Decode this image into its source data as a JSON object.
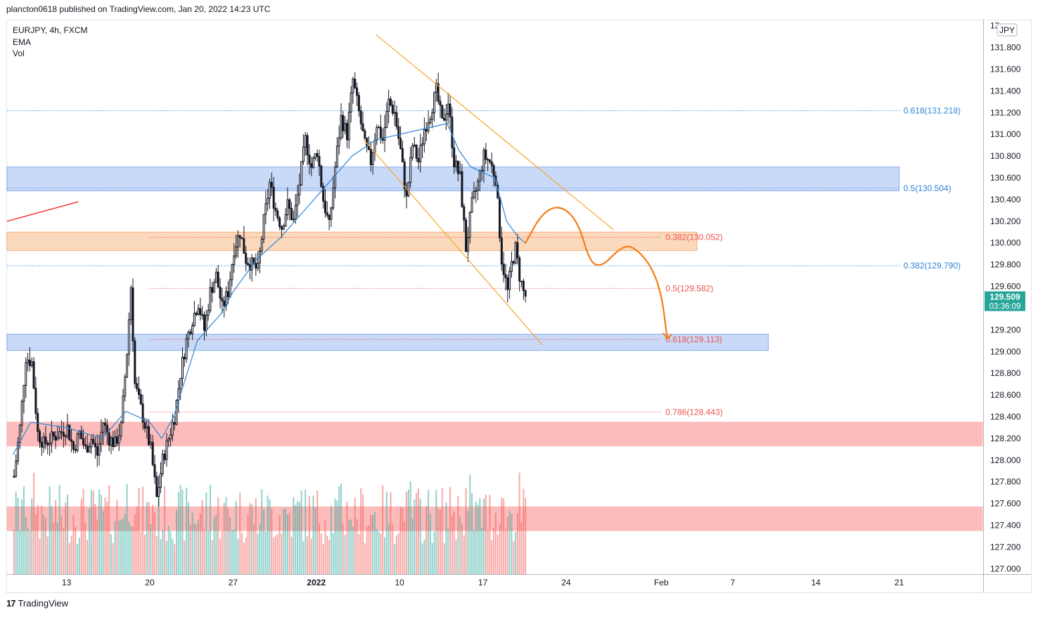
{
  "header": {
    "published": "plancton0618 published on TradingView.com, Jan 20, 2022 14:23 UTC"
  },
  "legend": {
    "symbol": "EURJPY, 4h, FXCM",
    "ema": "EMA",
    "vol": "Vol"
  },
  "footer": {
    "brand": "TradingView",
    "brand_mark": "17"
  },
  "colors": {
    "up": "#26a69a",
    "down": "#ef5350",
    "candle": "#131722",
    "ema": "#2f86d3",
    "blue_zone": "#c9d9f8",
    "orange_zone": "#fbd9bd",
    "red_zone": "#fdbcbc",
    "channel": "#f7a62c",
    "projection": "#f57c17",
    "fib_blue": "#2f86d3",
    "fib_red": "#ef5350",
    "price_badge": "#26a69a"
  },
  "chart_data": {
    "type": "candlestick",
    "symbol": "EURJPY",
    "timeframe": "4h",
    "currency": "JPY",
    "y_range": [
      126.95,
      132.05
    ],
    "y_ticks": [
      127.0,
      127.2,
      127.4,
      127.6,
      127.8,
      128.0,
      128.2,
      128.4,
      128.6,
      128.8,
      129.0,
      129.2,
      129.4,
      129.6,
      129.8,
      130.0,
      130.2,
      130.4,
      130.6,
      130.8,
      131.0,
      131.2,
      131.4,
      131.6,
      131.8
    ],
    "y_tick_labels": [
      "127.000",
      "127.200",
      "127.400",
      "127.600",
      "127.800",
      "128.000",
      "128.200",
      "128.400",
      "128.600",
      "128.800",
      "129.000",
      "129.200",
      "129.400",
      "129.600",
      "129.800",
      "130.000",
      "130.200",
      "130.400",
      "130.600",
      "130.800",
      "131.000",
      "131.200",
      "131.400",
      "131.600",
      "131.800"
    ],
    "top_partial_label": "13",
    "x_range": [
      "2021-12-08",
      "2022-02-28"
    ],
    "x_ticks": [
      {
        "date": "2021-12-13",
        "label": "13"
      },
      {
        "date": "2021-12-20",
        "label": "20"
      },
      {
        "date": "2021-12-27",
        "label": "27"
      },
      {
        "date": "2022-01-03",
        "label": "2022"
      },
      {
        "date": "2022-01-10",
        "label": "10"
      },
      {
        "date": "2022-01-17",
        "label": "17"
      },
      {
        "date": "2022-01-24",
        "label": "24"
      },
      {
        "date": "2022-02-01",
        "label": "Feb"
      },
      {
        "date": "2022-02-07",
        "label": "7"
      },
      {
        "date": "2022-02-14",
        "label": "14"
      },
      {
        "date": "2022-02-21",
        "label": "21"
      }
    ],
    "last_price": "129.509",
    "countdown": "03:36:09",
    "price_path": [
      [
        "2021-12-08 12:00",
        127.85
      ],
      [
        "2021-12-09",
        128.3
      ],
      [
        "2021-12-09 12:00",
        128.95
      ],
      [
        "2021-12-10",
        128.9
      ],
      [
        "2021-12-10 12:00",
        128.25
      ],
      [
        "2021-12-11",
        128.15
      ],
      [
        "2021-12-13",
        128.3
      ],
      [
        "2021-12-13 12:00",
        128.1
      ],
      [
        "2021-12-14",
        128.25
      ],
      [
        "2021-12-14 12:00",
        128.1
      ],
      [
        "2021-12-15",
        128.2
      ],
      [
        "2021-12-15 12:00",
        128.05
      ],
      [
        "2021-12-16",
        128.35
      ],
      [
        "2021-12-16 12:00",
        128.2
      ],
      [
        "2021-12-17",
        128.15
      ],
      [
        "2021-12-17 12:00",
        128.3
      ],
      [
        "2021-12-18",
        129.0
      ],
      [
        "2021-12-18 08:00",
        129.6
      ],
      [
        "2021-12-18 16:00",
        128.7
      ],
      [
        "2021-12-19",
        128.55
      ],
      [
        "2021-12-20",
        128.1
      ],
      [
        "2021-12-20 12:00",
        127.65
      ],
      [
        "2021-12-21",
        128.0
      ],
      [
        "2021-12-21 12:00",
        128.2
      ],
      [
        "2021-12-22",
        128.4
      ],
      [
        "2021-12-22 12:00",
        128.8
      ],
      [
        "2021-12-23",
        129.1
      ],
      [
        "2021-12-23 12:00",
        129.3
      ],
      [
        "2021-12-24",
        129.45
      ],
      [
        "2021-12-24 12:00",
        129.2
      ],
      [
        "2021-12-25",
        129.55
      ],
      [
        "2021-12-25 12:00",
        129.7
      ],
      [
        "2021-12-26",
        129.4
      ],
      [
        "2021-12-26 12:00",
        129.55
      ],
      [
        "2021-12-27",
        129.95
      ],
      [
        "2021-12-27 12:00",
        130.1
      ],
      [
        "2021-12-28",
        129.85
      ],
      [
        "2021-12-28 12:00",
        129.8
      ],
      [
        "2021-12-29",
        129.75
      ],
      [
        "2021-12-29 12:00",
        130.2
      ],
      [
        "2021-12-30",
        130.55
      ],
      [
        "2021-12-30 12:00",
        130.3
      ],
      [
        "2021-12-31",
        130.15
      ],
      [
        "2021-12-31 12:00",
        130.35
      ],
      [
        "2022-01-01",
        130.2
      ],
      [
        "2022-01-01 12:00",
        130.55
      ],
      [
        "2022-01-02",
        130.95
      ],
      [
        "2022-01-02 12:00",
        130.7
      ],
      [
        "2022-01-03",
        130.85
      ],
      [
        "2022-01-03 12:00",
        130.4
      ],
      [
        "2022-01-04",
        130.15
      ],
      [
        "2022-01-04 12:00",
        130.7
      ],
      [
        "2022-01-05",
        131.15
      ],
      [
        "2022-01-05 12:00",
        131.0
      ],
      [
        "2022-01-06",
        131.5
      ],
      [
        "2022-01-06 12:00",
        131.2
      ],
      [
        "2022-01-07",
        130.9
      ],
      [
        "2022-01-07 12:00",
        130.75
      ],
      [
        "2022-01-08",
        131.1
      ],
      [
        "2022-01-08 12:00",
        130.95
      ],
      [
        "2022-01-09",
        131.3
      ],
      [
        "2022-01-09 12:00",
        131.2
      ],
      [
        "2022-01-10",
        130.85
      ],
      [
        "2022-01-10 12:00",
        130.4
      ],
      [
        "2022-01-11",
        130.9
      ],
      [
        "2022-01-11 12:00",
        130.75
      ],
      [
        "2022-01-12",
        131.05
      ],
      [
        "2022-01-12 12:00",
        131.2
      ],
      [
        "2022-01-13",
        131.4
      ],
      [
        "2022-01-13 12:00",
        131.1
      ],
      [
        "2022-01-14",
        131.3
      ],
      [
        "2022-01-14 12:00",
        130.75
      ],
      [
        "2022-01-15",
        130.6
      ],
      [
        "2022-01-15 12:00",
        129.95
      ],
      [
        "2022-01-16",
        130.35
      ],
      [
        "2022-01-16 12:00",
        130.55
      ],
      [
        "2022-01-17",
        130.8
      ],
      [
        "2022-01-17 12:00",
        130.75
      ],
      [
        "2022-01-18",
        130.6
      ],
      [
        "2022-01-18 12:00",
        129.85
      ],
      [
        "2022-01-19",
        129.55
      ],
      [
        "2022-01-19 08:00",
        129.8
      ],
      [
        "2022-01-19 16:00",
        129.95
      ],
      [
        "2022-01-20",
        129.7
      ],
      [
        "2022-01-20 08:00",
        129.55
      ],
      [
        "2022-01-20 14:00",
        129.51
      ]
    ],
    "volume_range": [
      0,
      6000
    ],
    "ema_path": [
      [
        "2021-12-08 12:00",
        128.05
      ],
      [
        "2021-12-10",
        128.35
      ],
      [
        "2021-12-13",
        128.3
      ],
      [
        "2021-12-16",
        128.2
      ],
      [
        "2021-12-18",
        128.45
      ],
      [
        "2021-12-20",
        128.35
      ],
      [
        "2021-12-21",
        128.2
      ],
      [
        "2021-12-22",
        128.4
      ],
      [
        "2021-12-23",
        128.75
      ],
      [
        "2021-12-24",
        129.1
      ],
      [
        "2021-12-26",
        129.35
      ],
      [
        "2021-12-27",
        129.55
      ],
      [
        "2021-12-29",
        129.85
      ],
      [
        "2021-12-31",
        130.05
      ],
      [
        "2022-01-02",
        130.3
      ],
      [
        "2022-01-04",
        130.55
      ],
      [
        "2022-01-06",
        130.8
      ],
      [
        "2022-01-08",
        130.95
      ],
      [
        "2022-01-10",
        131.0
      ],
      [
        "2022-01-12",
        131.05
      ],
      [
        "2022-01-14",
        131.1
      ],
      [
        "2022-01-15",
        130.85
      ],
      [
        "2022-01-16",
        130.7
      ],
      [
        "2022-01-17",
        130.65
      ],
      [
        "2022-01-18",
        130.6
      ],
      [
        "2022-01-19",
        130.2
      ],
      [
        "2022-01-20",
        130.05
      ],
      [
        "2022-01-20 14:00",
        130.0
      ]
    ],
    "zones": [
      {
        "kind": "blue",
        "from": "2021-12-08",
        "to": "2022-02-21",
        "low": 130.48,
        "high": 130.7
      },
      {
        "kind": "orange",
        "from": "2021-12-08",
        "to": "2022-02-04",
        "low": 129.93,
        "high": 130.1
      },
      {
        "kind": "blue",
        "from": "2021-12-08",
        "to": "2022-02-10",
        "low": 129.01,
        "high": 129.16
      },
      {
        "kind": "red",
        "from": "2021-12-08",
        "to": "2022-02-28",
        "low": 128.13,
        "high": 128.35
      },
      {
        "kind": "red",
        "from": "2021-12-08",
        "to": "2022-02-28",
        "low": 127.35,
        "high": 127.57
      }
    ],
    "fib_levels": [
      {
        "label": "0.618(131.218)",
        "price": 131.218,
        "color": "blue",
        "from": "2021-12-08",
        "to": "2022-02-21"
      },
      {
        "label": "0.5(130.504)",
        "price": 130.504,
        "color": "blue",
        "from": "2021-12-08",
        "to": "2022-02-21"
      },
      {
        "label": "0.382(129.790)",
        "price": 129.79,
        "color": "blue",
        "from": "2021-12-08",
        "to": "2022-02-21"
      },
      {
        "label": "0.382(130.052)",
        "price": 130.052,
        "color": "red",
        "from": "2021-12-20",
        "to": "2022-02-01"
      },
      {
        "label": "0.5(129.582)",
        "price": 129.582,
        "color": "red",
        "from": "2021-12-20",
        "to": "2022-02-01"
      },
      {
        "label": "0.618(129.113)",
        "price": 129.113,
        "color": "red",
        "from": "2021-12-20",
        "to": "2022-02-01"
      },
      {
        "label": "0.786(128.443)",
        "price": 128.443,
        "color": "red",
        "from": "2021-12-20",
        "to": "2022-02-01"
      }
    ],
    "channel_lines": [
      {
        "from": [
          "2022-01-08",
          131.92
        ],
        "to": [
          "2022-01-28",
          130.12
        ]
      },
      {
        "from": [
          "2022-01-07",
          130.95
        ],
        "to": [
          "2022-01-22",
          129.06
        ]
      }
    ],
    "trend_line": {
      "from": [
        "2021-12-08",
        130.2
      ],
      "to": [
        "2021-12-14",
        130.38
      ]
    },
    "projection_path": [
      [
        "2022-01-20 14:00",
        130.0
      ],
      [
        "2022-01-22",
        130.28
      ],
      [
        "2022-01-23 12:00",
        130.35
      ],
      [
        "2022-01-25",
        130.2
      ],
      [
        "2022-01-26",
        129.82
      ],
      [
        "2022-01-27",
        129.78
      ],
      [
        "2022-01-28 12:00",
        129.95
      ],
      [
        "2022-01-29 12:00",
        129.98
      ],
      [
        "2022-01-31",
        129.82
      ],
      [
        "2022-02-01",
        129.55
      ],
      [
        "2022-02-01 12:00",
        129.12
      ]
    ]
  }
}
